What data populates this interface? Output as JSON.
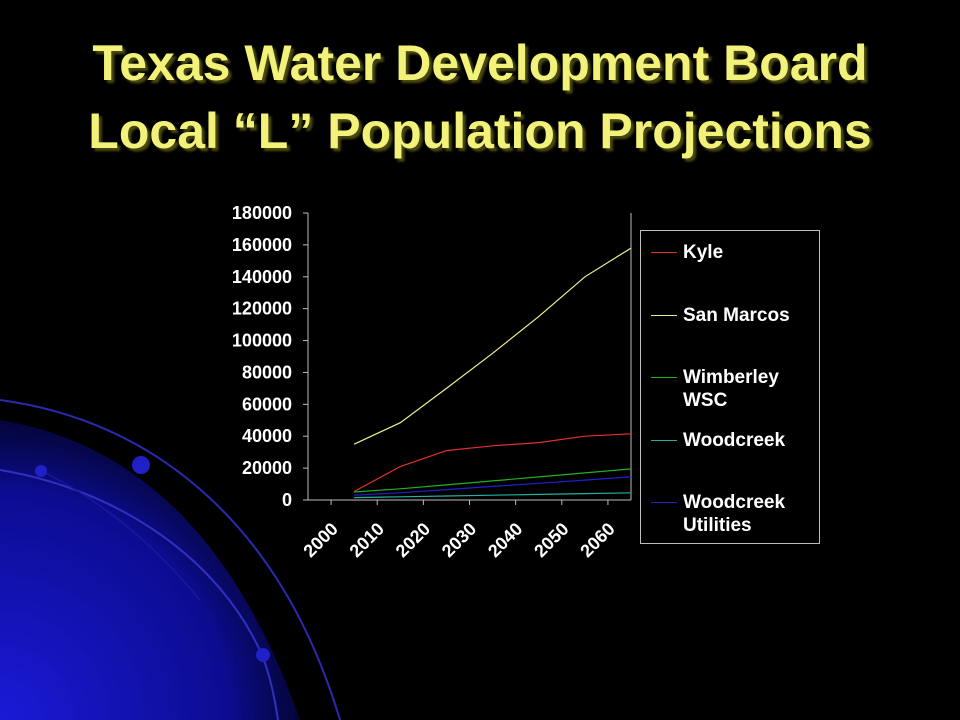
{
  "slide": {
    "title_line1": "Texas Water Development Board",
    "title_line2": "Local “L” Population Projections"
  },
  "colors": {
    "title": "#f2f27a",
    "background": "#000000",
    "decor_blue": "#1010c0"
  },
  "chart_data": {
    "type": "line",
    "title": "",
    "xlabel": "",
    "ylabel": "",
    "categories": [
      "2000",
      "2010",
      "2020",
      "2030",
      "2040",
      "2050",
      "2060"
    ],
    "x": [
      2000,
      2010,
      2020,
      2030,
      2040,
      2050,
      2060
    ],
    "ylim": [
      0,
      180000
    ],
    "y_ticks": [
      "180000",
      "160000",
      "140000",
      "120000",
      "100000",
      "80000",
      "60000",
      "40000",
      "20000",
      "0"
    ],
    "grid": false,
    "legend_position": "right",
    "series": [
      {
        "name": "Kyle",
        "color": "#e23030",
        "values": [
          5300,
          21000,
          31000,
          34000,
          36000,
          40000,
          41500
        ]
      },
      {
        "name": "San Marcos",
        "color": "#f0f090",
        "values": [
          35000,
          48500,
          70000,
          92000,
          115000,
          140000,
          158000
        ]
      },
      {
        "name": "Wimberley WSC",
        "color": "#22b022",
        "values": [
          5000,
          7000,
          9500,
          12000,
          14500,
          17000,
          19500
        ]
      },
      {
        "name": "Woodcreek",
        "color": "#22b0a0",
        "values": [
          1500,
          2000,
          2500,
          3000,
          3500,
          4000,
          4500
        ]
      },
      {
        "name": "Woodcreek Utilities",
        "color": "#2020d0",
        "values": [
          3000,
          4500,
          6500,
          8500,
          10500,
          12500,
          14500
        ]
      }
    ]
  }
}
